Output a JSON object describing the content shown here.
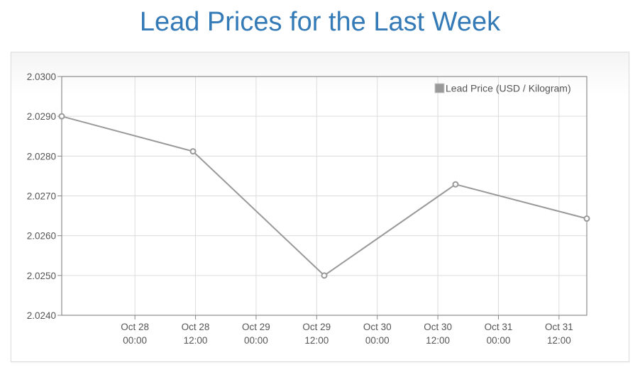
{
  "title": "Lead Prices for the Last Week",
  "chart_data": {
    "type": "line",
    "title": "Lead Prices for the Last Week",
    "xlabel": "",
    "ylabel": "",
    "x_ticks": [
      [
        "Oct 28",
        "00:00"
      ],
      [
        "Oct 28",
        "12:00"
      ],
      [
        "Oct 29",
        "00:00"
      ],
      [
        "Oct 29",
        "12:00"
      ],
      [
        "Oct 30",
        "00:00"
      ],
      [
        "Oct 30",
        "12:00"
      ],
      [
        "Oct 31",
        "00:00"
      ],
      [
        "Oct 31",
        "12:00"
      ]
    ],
    "x_tick_hours": [
      0,
      12,
      24,
      36,
      48,
      60,
      72,
      84
    ],
    "xlim_hours": [
      -14.5,
      89.5
    ],
    "y_ticks": [
      "2.0240",
      "2.0250",
      "2.0260",
      "2.0270",
      "2.0280",
      "2.0290",
      "2.0300"
    ],
    "ylim": [
      2.024,
      2.03
    ],
    "grid": true,
    "legend_position": "top-right",
    "series": [
      {
        "name": "Lead Price (USD / Kilogram)",
        "color": "#999999",
        "x_hours": [
          -14.5,
          11.5,
          37.5,
          63.5,
          89.5
        ],
        "values": [
          2.029,
          2.02812,
          2.025,
          2.02729,
          2.02643
        ]
      }
    ]
  }
}
